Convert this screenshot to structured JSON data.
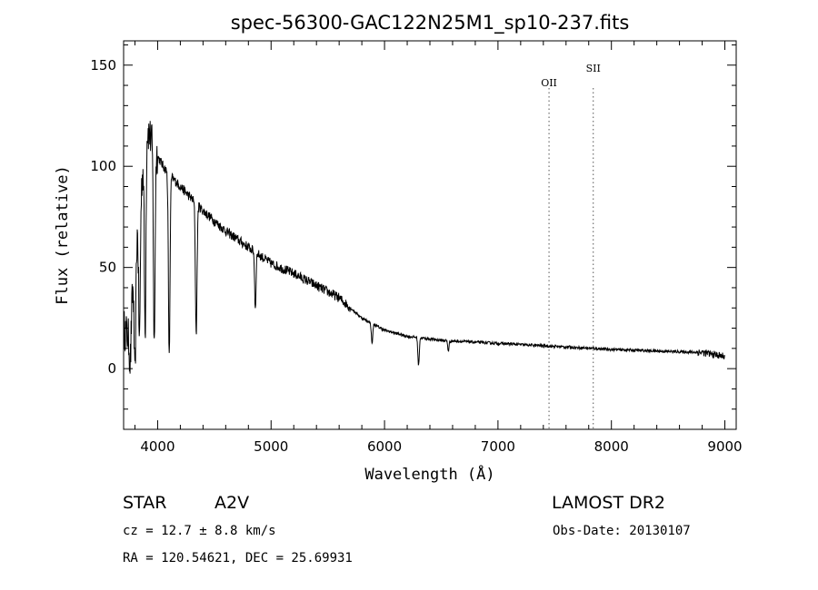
{
  "chart_data": {
    "type": "line",
    "title": "spec-56300-GAC122N25M1_sp10-237.fits",
    "xlabel": "Wavelength (Å)",
    "ylabel": "Flux (relative)",
    "xlim": [
      3700,
      9100
    ],
    "ylim": [
      -30,
      162
    ],
    "x_ticks": [
      4000,
      5000,
      6000,
      7000,
      8000,
      9000
    ],
    "y_ticks": [
      0,
      50,
      100,
      150
    ],
    "grid": false,
    "series": [
      {
        "continuum": [
          [
            3700,
            20
          ],
          [
            3750,
            15
          ],
          [
            3800,
            55
          ],
          [
            3850,
            85
          ],
          [
            3900,
            120
          ],
          [
            3950,
            112
          ],
          [
            4000,
            105
          ],
          [
            4050,
            100
          ],
          [
            4100,
            96
          ],
          [
            4150,
            93
          ],
          [
            4200,
            90
          ],
          [
            4300,
            84
          ],
          [
            4400,
            78
          ],
          [
            4500,
            73
          ],
          [
            4600,
            68
          ],
          [
            4700,
            64
          ],
          [
            4800,
            60
          ],
          [
            4900,
            56
          ],
          [
            5000,
            52
          ],
          [
            5200,
            47
          ],
          [
            5400,
            41
          ],
          [
            5600,
            35
          ],
          [
            5800,
            25
          ],
          [
            6000,
            19
          ],
          [
            6200,
            16
          ],
          [
            6500,
            14
          ],
          [
            7000,
            12.5
          ],
          [
            7500,
            11
          ],
          [
            8000,
            9.5
          ],
          [
            8500,
            8.5
          ],
          [
            8800,
            8
          ],
          [
            9000,
            6
          ]
        ],
        "absorption_features": [
          {
            "x": 3760,
            "depth": 18
          },
          {
            "x": 3800,
            "depth": 60
          },
          {
            "x": 3840,
            "depth": 65
          },
          {
            "x": 3890,
            "depth": 95
          },
          {
            "x": 3970,
            "depth": 100
          },
          {
            "x": 4102,
            "depth": 90
          },
          {
            "x": 4340,
            "depth": 65
          },
          {
            "x": 4861,
            "depth": 28
          },
          {
            "x": 5890,
            "depth": 10
          },
          {
            "x": 6300,
            "depth": 14
          },
          {
            "x": 6563,
            "depth": 5
          }
        ]
      }
    ],
    "reference_lines": [
      {
        "label": "OII",
        "x": 7450
      },
      {
        "label": "SII",
        "x": 7840
      }
    ]
  },
  "info": {
    "object_class": "STAR",
    "subclass": "A2V",
    "survey": "LAMOST DR2",
    "redshift_text": "cz = 12.7 ± 8.8 km/s",
    "obs_date": "Obs-Date: 20130107",
    "coords": "RA = 120.54621, DEC =  25.69931"
  }
}
